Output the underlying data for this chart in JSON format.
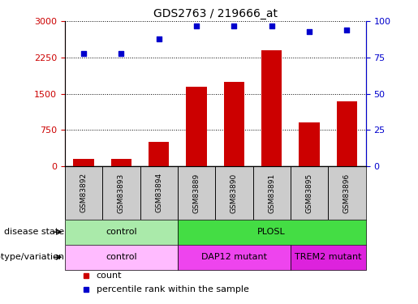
{
  "title": "GDS2763 / 219666_at",
  "samples": [
    "GSM83892",
    "GSM83893",
    "GSM83894",
    "GSM83889",
    "GSM83890",
    "GSM83891",
    "GSM83895",
    "GSM83896"
  ],
  "counts": [
    150,
    150,
    500,
    1650,
    1750,
    2400,
    900,
    1350
  ],
  "percentiles": [
    78,
    78,
    88,
    97,
    97,
    97,
    93,
    94
  ],
  "ylim_left": [
    0,
    3000
  ],
  "ylim_right": [
    0,
    100
  ],
  "yticks_left": [
    0,
    750,
    1500,
    2250,
    3000
  ],
  "yticks_right": [
    0,
    25,
    50,
    75,
    100
  ],
  "bar_color": "#cc0000",
  "dot_color": "#0000cc",
  "sample_box_color": "#cccccc",
  "disease_state_groups": [
    {
      "label": "control",
      "start": 0,
      "end": 3,
      "color": "#aaeaaa"
    },
    {
      "label": "PLOSL",
      "start": 3,
      "end": 8,
      "color": "#44dd44"
    }
  ],
  "genotype_groups": [
    {
      "label": "control",
      "start": 0,
      "end": 3,
      "color": "#ffbbff"
    },
    {
      "label": "DAP12 mutant",
      "start": 3,
      "end": 6,
      "color": "#ee44ee"
    },
    {
      "label": "TREM2 mutant",
      "start": 6,
      "end": 8,
      "color": "#dd22dd"
    }
  ],
  "left_labels": [
    "disease state",
    "genotype/variation"
  ],
  "legend_count_label": "count",
  "legend_pct_label": "percentile rank within the sample",
  "gridline_yticks": [
    750,
    1500,
    2250,
    3000
  ]
}
